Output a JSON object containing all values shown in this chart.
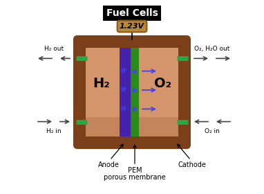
{
  "title": "Fuel Cells",
  "voltage": "1.23V",
  "colors": {
    "outer_frame": "#7B3F1A",
    "inner_chamber": "#D4956A",
    "inner_bottom_shadow": "#C4855A",
    "anode_purple": "#4422AA",
    "membrane_green": "#2A8A1A",
    "background": "#ffffff",
    "arrow_blue": "#2222CC",
    "title_bg": "#000000",
    "title_text": "#ffffff",
    "voltage_bg": "#B8883A",
    "voltage_border": "#8B5A1A",
    "pipe_color": "#22AA44",
    "h_plus_color": "#4444EE",
    "black": "#000000",
    "gray_arrow": "#444444"
  },
  "h2_label": "H₂",
  "o2_label": "O₂",
  "h2_out": "H₂ out",
  "h2_in": "H₂ in",
  "o2_out": "O₂, H₂O out",
  "o2_in": "O₂ in",
  "anode_label": "Anode",
  "cathode_label": "Cathode",
  "pem_line1": "PEM",
  "pem_line2": "porous membrane"
}
